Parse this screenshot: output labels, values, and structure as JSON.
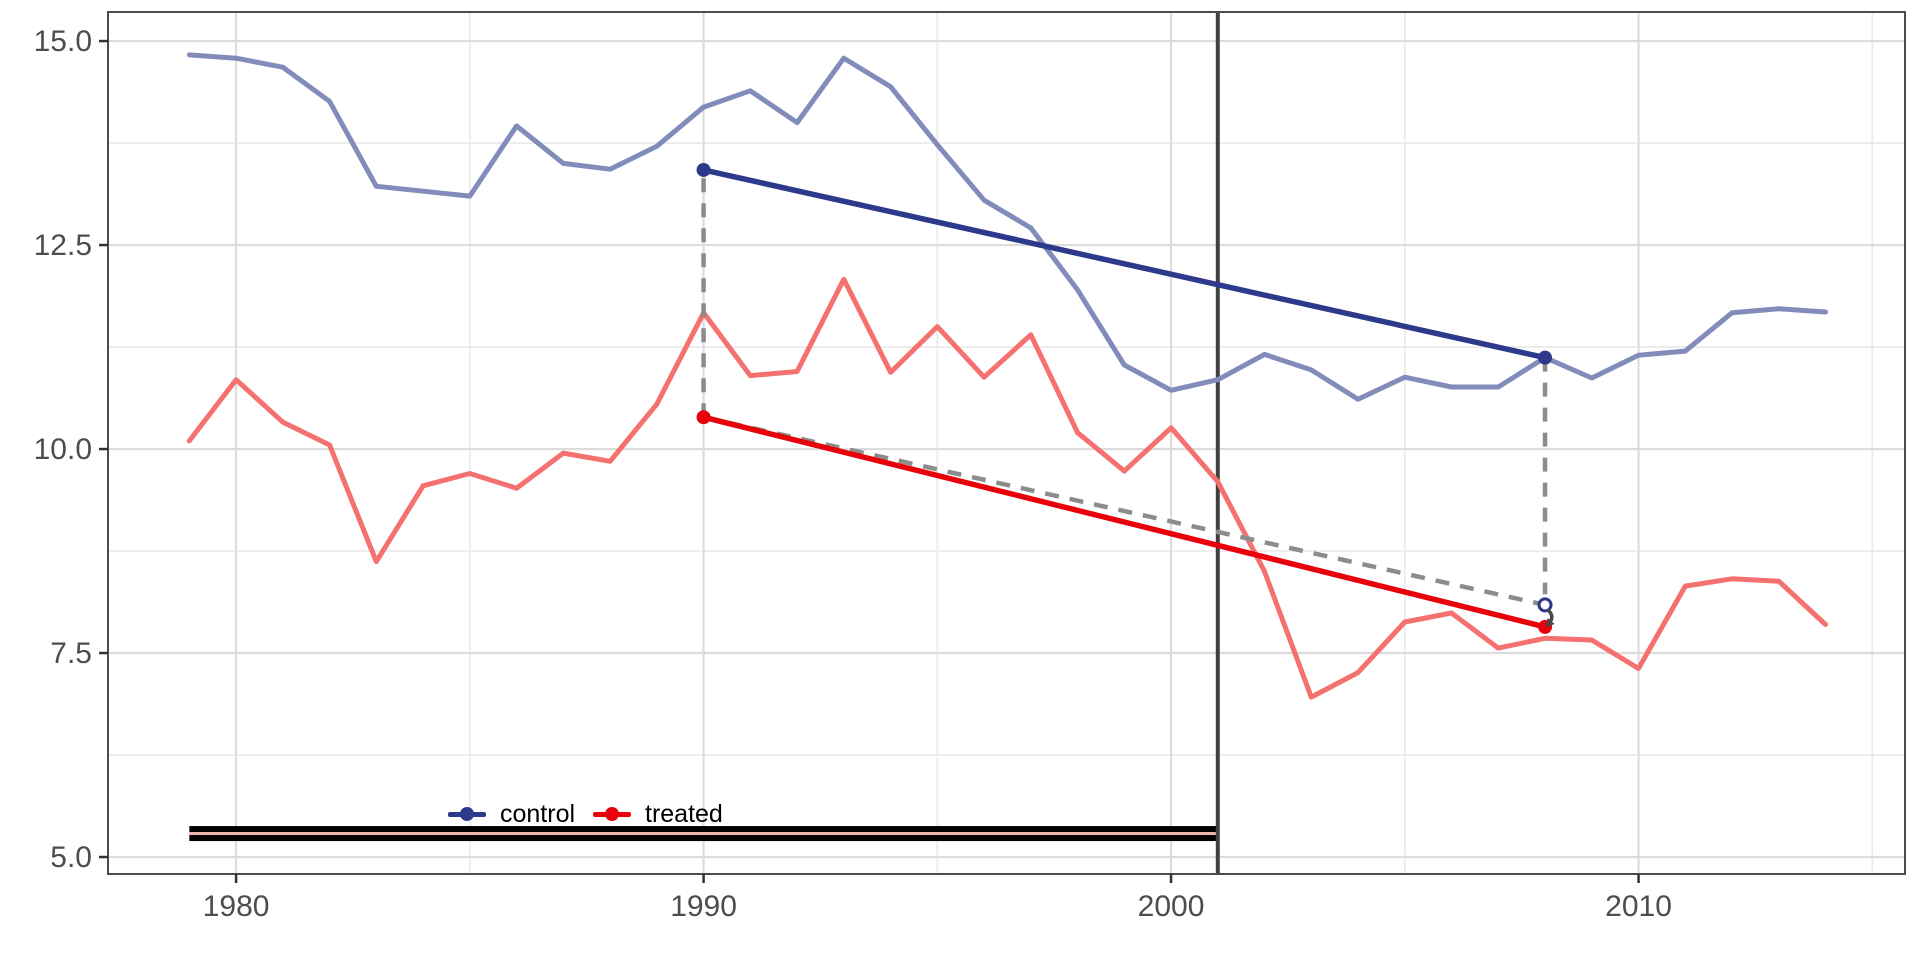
{
  "chart_data": {
    "type": "line",
    "title": "",
    "xlabel": "",
    "ylabel": "",
    "x": [
      1979,
      1980,
      1981,
      1982,
      1983,
      1984,
      1985,
      1986,
      1987,
      1988,
      1989,
      1990,
      1991,
      1992,
      1993,
      1994,
      1995,
      1996,
      1997,
      1998,
      1999,
      2000,
      2001,
      2002,
      2003,
      2004,
      2005,
      2006,
      2007,
      2008,
      2009,
      2010,
      2011,
      2012,
      2013,
      2014
    ],
    "series": [
      {
        "name": "control",
        "color": "#828cbb",
        "values": [
          14.83,
          14.79,
          14.68,
          14.26,
          13.22,
          13.16,
          13.1,
          13.96,
          13.5,
          13.43,
          13.71,
          14.19,
          14.39,
          14.0,
          14.79,
          14.44,
          13.73,
          13.05,
          12.71,
          11.95,
          11.03,
          10.72,
          10.85,
          11.16,
          10.97,
          10.61,
          10.88,
          10.76,
          10.76,
          11.12,
          10.87,
          11.15,
          11.2,
          11.67,
          11.72,
          11.68
        ]
      },
      {
        "name": "treated",
        "color": "#f4716f",
        "values": [
          10.1,
          10.85,
          10.33,
          10.05,
          8.62,
          9.55,
          9.7,
          9.52,
          9.95,
          9.85,
          10.55,
          11.67,
          10.9,
          10.95,
          12.08,
          10.94,
          11.5,
          10.88,
          11.4,
          10.2,
          9.73,
          10.26,
          9.6,
          8.5,
          6.96,
          7.26,
          7.88,
          7.99,
          7.56,
          7.68,
          7.66,
          7.31,
          8.32,
          8.41,
          8.38,
          7.85
        ]
      }
    ],
    "axes": {
      "x_domain": [
        1977.26,
        2015.7
      ],
      "y_domain": [
        4.792,
        15.356
      ],
      "x_major_ticks": [
        {
          "value": 1980,
          "label": "1980"
        },
        {
          "value": 1990,
          "label": "1990"
        },
        {
          "value": 2000,
          "label": "2000"
        },
        {
          "value": 2010,
          "label": "2010"
        }
      ],
      "x_minor_ticks": [
        1985,
        1995,
        2005,
        2015
      ],
      "y_major_ticks": [
        {
          "value": 5,
          "label": "5.0"
        },
        {
          "value": 7.5,
          "label": "7.5"
        },
        {
          "value": 10,
          "label": "10.0"
        },
        {
          "value": 12.5,
          "label": "12.5"
        },
        {
          "value": 15,
          "label": "15.0"
        }
      ],
      "y_minor_ticks": [
        6.25,
        8.75,
        11.25,
        13.75
      ],
      "grid": true,
      "legend_position": "inside-bottom-left"
    },
    "annotations": {
      "treatment_time_line": {
        "x": 2001,
        "color": "#404040"
      },
      "trend_control": {
        "x1": 1990,
        "y1": 13.42,
        "x2": 2008,
        "y2": 11.12,
        "color": "#2d3a8c"
      },
      "trend_treated": {
        "x1": 1990,
        "y1": 10.39,
        "x2": 2008,
        "y2": 7.82,
        "color": "#e8000b"
      },
      "counterfactual": {
        "x1": 1990,
        "y1": 10.39,
        "x2": 2008,
        "y2": 8.09,
        "color": "#8c8c8c",
        "style": "dashed"
      },
      "gap_line_1990": {
        "x": 1990,
        "y1": 10.39,
        "y2": 13.42,
        "color": "#8c8c8c",
        "style": "dashed"
      },
      "gap_line_2008": {
        "x": 2008,
        "y1": 11.12,
        "y2": 8.22,
        "color": "#8c8c8c",
        "style": "dashed"
      },
      "counterfactual_point": {
        "x": 2008,
        "y": 8.09
      },
      "effect_arrow": {
        "x": 2008,
        "y_from": 8.09,
        "y_to": 7.82,
        "color": "#474747"
      },
      "observation_band": {
        "x1": 1979,
        "x2": 2001,
        "y_center": 5.3,
        "stripe_colors": [
          "#000000",
          "#efb4ad",
          "#000000"
        ]
      }
    },
    "legend": {
      "items": [
        {
          "label": "control",
          "color": "#2d3a8c"
        },
        {
          "label": "treated",
          "color": "#e8000b"
        }
      ]
    },
    "colors": {
      "grid_major": "#dcdcdc",
      "grid_minor": "#ebebeb",
      "panel_border": "#4d4d4d",
      "tick_text": "#4d4d4d"
    }
  }
}
